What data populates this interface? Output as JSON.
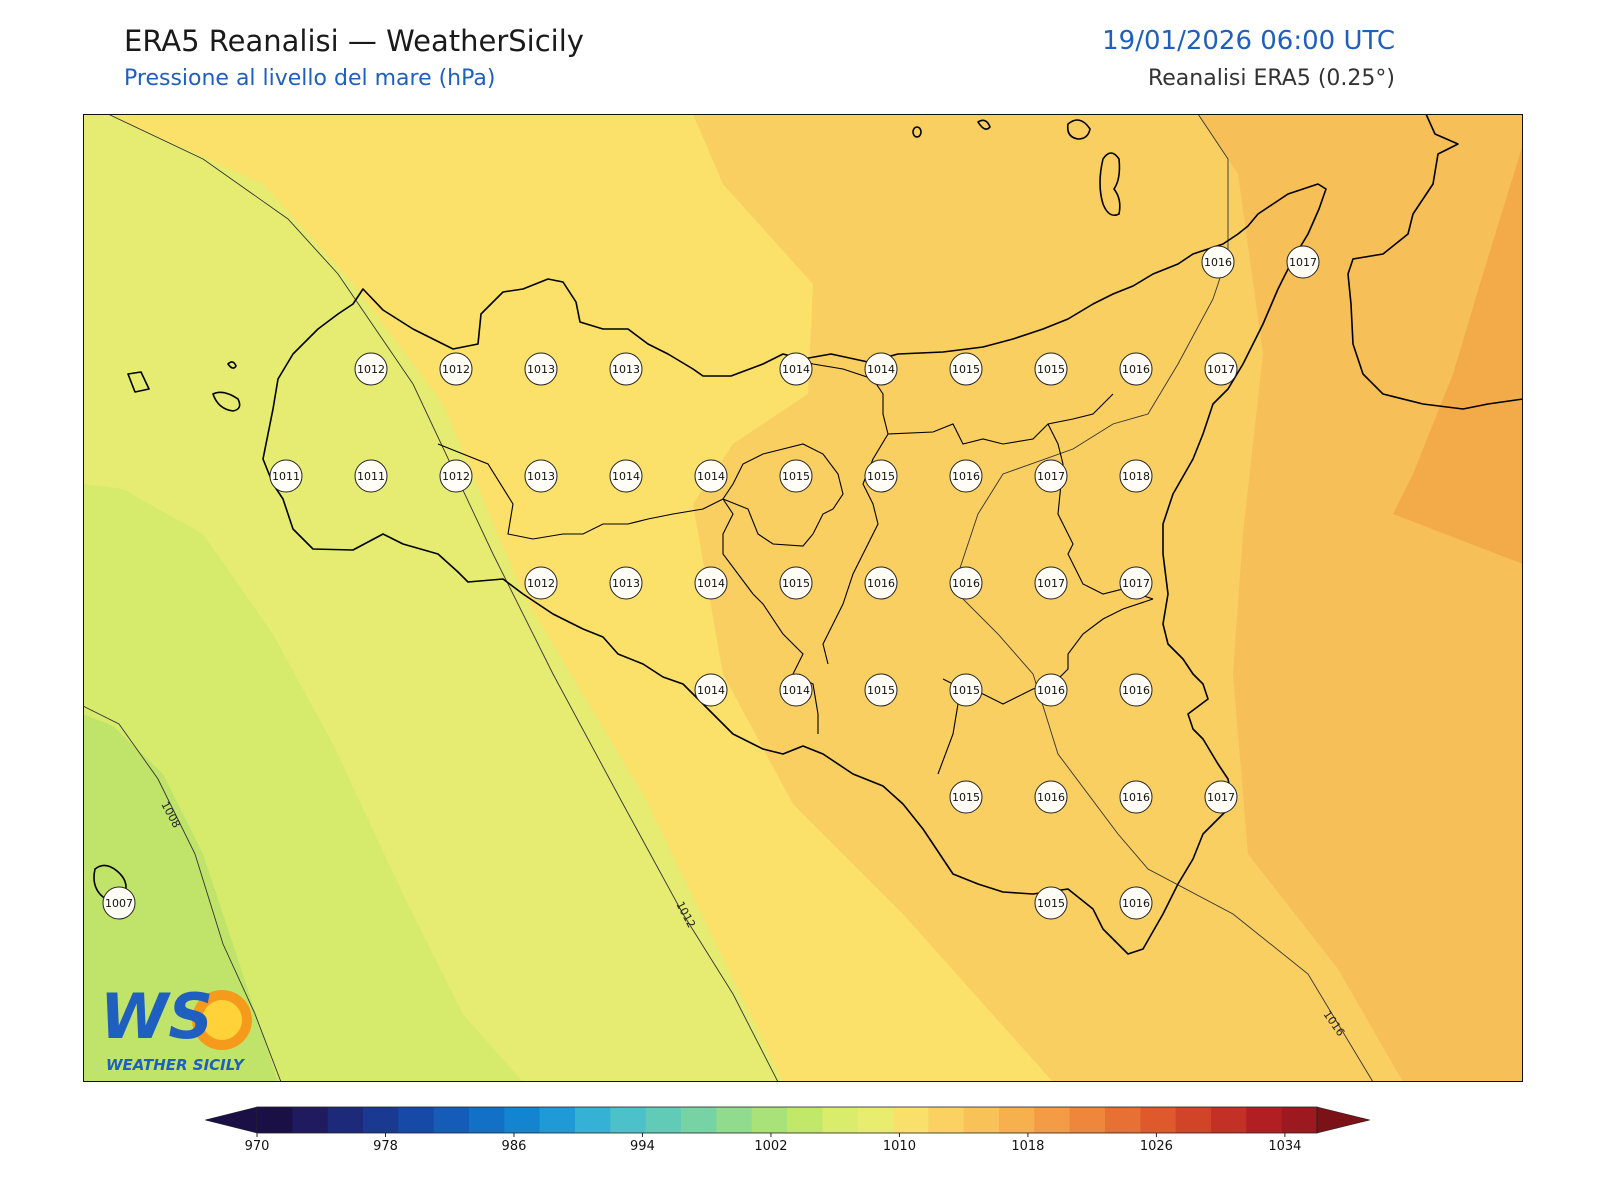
{
  "header": {
    "title": "ERA5 Reanalisi — WeatherSicily",
    "subtitle": "Pressione al livello del mare (hPa)",
    "datetime": "19/01/2026 06:00 UTC",
    "source": "Reanalisi ERA5 (0.25°)"
  },
  "map": {
    "isobar_labels": [
      "1008",
      "1012",
      "1016"
    ],
    "station_values": [
      "1016",
      "1017",
      "1012",
      "1012",
      "1013",
      "1013",
      "1014",
      "1014",
      "1015",
      "1015",
      "1016",
      "1017",
      "1011",
      "1011",
      "1012",
      "1013",
      "1014",
      "1014",
      "1015",
      "1015",
      "1016",
      "1017",
      "1018",
      "1012",
      "1013",
      "1014",
      "1015",
      "1016",
      "1016",
      "1017",
      "1017",
      "1014",
      "1014",
      "1015",
      "1015",
      "1016",
      "1016",
      "1015",
      "1016",
      "1016",
      "1017",
      "1007",
      "1015",
      "1016"
    ]
  },
  "colorbar": {
    "tick_labels": [
      "970",
      "978",
      "986",
      "994",
      "1002",
      "1010",
      "1018",
      "1026",
      "1034"
    ],
    "min": 970,
    "max": 1036,
    "step": 2,
    "colors": [
      "#1a1045",
      "#201a5e",
      "#1d2a7a",
      "#1a3a91",
      "#1749a6",
      "#155cb8",
      "#1270c7",
      "#1385d0",
      "#1f9ad6",
      "#35b1d5",
      "#4cc1ca",
      "#62cbb8",
      "#77d3a4",
      "#90db8e",
      "#a8e278",
      "#c2e86a",
      "#d9ec6c",
      "#e8ed70",
      "#f8e06a",
      "#fbd262",
      "#f9c259",
      "#f6b04e",
      "#f39c45",
      "#ee863c",
      "#e77034",
      "#de5a2d",
      "#d24428",
      "#c33025",
      "#b21f22",
      "#9c1a1f",
      "#7a1218"
    ]
  },
  "logo": {
    "letters": "WS",
    "text": "WEATHER SICILY"
  }
}
